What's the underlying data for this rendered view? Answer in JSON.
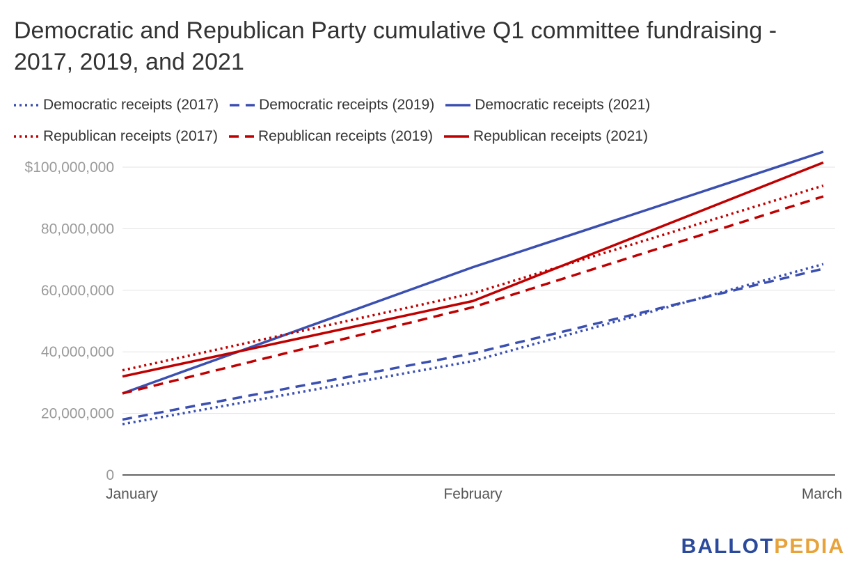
{
  "chart_data": {
    "type": "line",
    "title": "Democratic and Republican Party cumulative Q1 committee fundraising - 2017, 2019, and 2021",
    "x": [
      "January",
      "February",
      "March"
    ],
    "ylim": [
      0,
      100000000
    ],
    "yticks": [
      {
        "value": 0,
        "label": "0"
      },
      {
        "value": 20000000,
        "label": "20,000,000"
      },
      {
        "value": 40000000,
        "label": "40,000,000"
      },
      {
        "value": 60000000,
        "label": "60,000,000"
      },
      {
        "value": 80000000,
        "label": "80,000,000"
      },
      {
        "value": 100000000,
        "label": "$100,000,000"
      }
    ],
    "grid": true,
    "legend_position": "top",
    "series": [
      {
        "name": "Democratic receipts (2017)",
        "color": "#3a4fb0",
        "style": "dotted",
        "values": [
          16500000,
          37000000,
          68500000
        ]
      },
      {
        "name": "Democratic receipts (2019)",
        "color": "#3a4fb0",
        "style": "dashed",
        "values": [
          18000000,
          39500000,
          67000000
        ]
      },
      {
        "name": "Democratic receipts (2021)",
        "color": "#3a4fb0",
        "style": "solid",
        "values": [
          26500000,
          67500000,
          105000000
        ]
      },
      {
        "name": "Republican receipts (2017)",
        "color": "#c00000",
        "style": "dotted",
        "values": [
          34000000,
          59000000,
          94000000
        ]
      },
      {
        "name": "Republican receipts (2019)",
        "color": "#c00000",
        "style": "dashed",
        "values": [
          26500000,
          54500000,
          90500000
        ]
      },
      {
        "name": "Republican receipts (2021)",
        "color": "#c00000",
        "style": "solid",
        "values": [
          32000000,
          56500000,
          101500000
        ]
      }
    ]
  },
  "logo": {
    "part1": "BALLOT",
    "part2": "PEDIA"
  }
}
